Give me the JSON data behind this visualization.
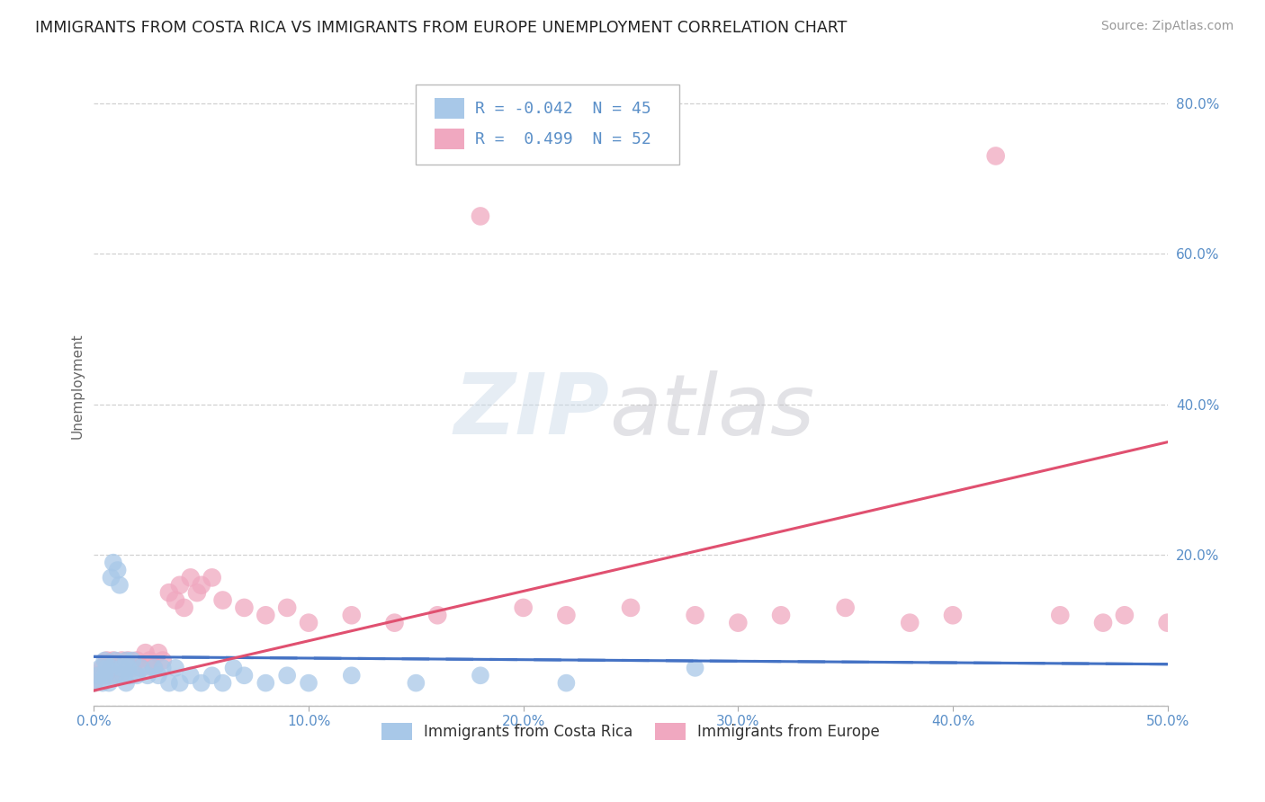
{
  "title": "IMMIGRANTS FROM COSTA RICA VS IMMIGRANTS FROM EUROPE UNEMPLOYMENT CORRELATION CHART",
  "source": "Source: ZipAtlas.com",
  "ylabel": "Unemployment",
  "xlim": [
    0.0,
    0.5
  ],
  "ylim": [
    0.0,
    0.85
  ],
  "color_cr": "#a8c8e8",
  "color_eu": "#f0a8c0",
  "trend_color_cr": "#4472c4",
  "trend_color_eu": "#e05070",
  "R_cr": -0.042,
  "N_cr": 45,
  "R_eu": 0.499,
  "N_eu": 52,
  "legend_label_cr": "Immigrants from Costa Rica",
  "legend_label_eu": "Immigrants from Europe",
  "grid_color": "#cccccc",
  "tick_color": "#5a8fc8",
  "cr_x": [
    0.0,
    0.002,
    0.003,
    0.004,
    0.005,
    0.005,
    0.006,
    0.007,
    0.008,
    0.008,
    0.009,
    0.01,
    0.01,
    0.011,
    0.012,
    0.013,
    0.014,
    0.015,
    0.015,
    0.016,
    0.017,
    0.018,
    0.02,
    0.022,
    0.025,
    0.028,
    0.03,
    0.032,
    0.035,
    0.038,
    0.04,
    0.045,
    0.05,
    0.055,
    0.06,
    0.065,
    0.07,
    0.08,
    0.09,
    0.1,
    0.12,
    0.15,
    0.18,
    0.22,
    0.28
  ],
  "cr_y": [
    0.03,
    0.04,
    0.05,
    0.03,
    0.06,
    0.04,
    0.05,
    0.03,
    0.17,
    0.05,
    0.19,
    0.06,
    0.04,
    0.18,
    0.16,
    0.05,
    0.04,
    0.06,
    0.03,
    0.05,
    0.04,
    0.06,
    0.04,
    0.05,
    0.04,
    0.05,
    0.04,
    0.05,
    0.03,
    0.05,
    0.03,
    0.04,
    0.03,
    0.04,
    0.03,
    0.05,
    0.04,
    0.03,
    0.04,
    0.03,
    0.04,
    0.03,
    0.04,
    0.03,
    0.05
  ],
  "eu_x": [
    0.0,
    0.002,
    0.004,
    0.005,
    0.006,
    0.007,
    0.008,
    0.009,
    0.01,
    0.012,
    0.013,
    0.015,
    0.016,
    0.018,
    0.02,
    0.022,
    0.024,
    0.026,
    0.028,
    0.03,
    0.032,
    0.035,
    0.038,
    0.04,
    0.042,
    0.045,
    0.048,
    0.05,
    0.055,
    0.06,
    0.07,
    0.08,
    0.09,
    0.1,
    0.12,
    0.14,
    0.16,
    0.18,
    0.2,
    0.22,
    0.25,
    0.28,
    0.3,
    0.32,
    0.35,
    0.38,
    0.4,
    0.42,
    0.45,
    0.47,
    0.48,
    0.5
  ],
  "eu_y": [
    0.03,
    0.04,
    0.05,
    0.04,
    0.06,
    0.05,
    0.04,
    0.06,
    0.05,
    0.04,
    0.06,
    0.05,
    0.06,
    0.05,
    0.06,
    0.05,
    0.07,
    0.06,
    0.05,
    0.07,
    0.06,
    0.15,
    0.14,
    0.16,
    0.13,
    0.17,
    0.15,
    0.16,
    0.17,
    0.14,
    0.13,
    0.12,
    0.13,
    0.11,
    0.12,
    0.11,
    0.12,
    0.65,
    0.13,
    0.12,
    0.13,
    0.12,
    0.11,
    0.12,
    0.13,
    0.11,
    0.12,
    0.73,
    0.12,
    0.11,
    0.12,
    0.11
  ],
  "cr_trend_x": [
    0.0,
    0.5
  ],
  "cr_trend_y": [
    0.065,
    0.055
  ],
  "eu_trend_x": [
    0.0,
    0.5
  ],
  "eu_trend_y": [
    0.02,
    0.35
  ]
}
